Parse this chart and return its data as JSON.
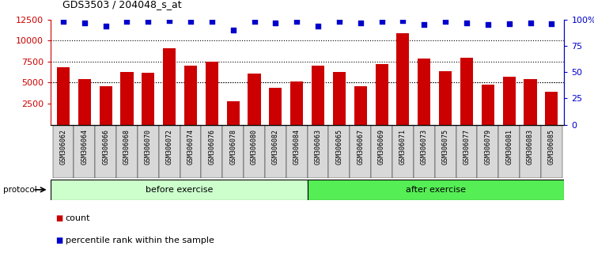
{
  "title": "GDS3503 / 204048_s_at",
  "categories": [
    "GSM306062",
    "GSM306064",
    "GSM306066",
    "GSM306068",
    "GSM306070",
    "GSM306072",
    "GSM306074",
    "GSM306076",
    "GSM306078",
    "GSM306080",
    "GSM306082",
    "GSM306084",
    "GSM306063",
    "GSM306065",
    "GSM306067",
    "GSM306069",
    "GSM306071",
    "GSM306073",
    "GSM306075",
    "GSM306077",
    "GSM306079",
    "GSM306081",
    "GSM306083",
    "GSM306085"
  ],
  "bar_values": [
    6850,
    5400,
    4550,
    6300,
    6200,
    9100,
    7050,
    7450,
    2750,
    6050,
    4400,
    5100,
    7050,
    6250,
    4550,
    7200,
    10900,
    7900,
    6400,
    7950,
    4750,
    5700,
    5400,
    3900
  ],
  "dot_values_pct": [
    98,
    97,
    94,
    98,
    98,
    99,
    98,
    98,
    90,
    98,
    97,
    98,
    94,
    98,
    97,
    98,
    99,
    95,
    98,
    97,
    95,
    96,
    97,
    96
  ],
  "bar_color": "#cc0000",
  "dot_color": "#0000cc",
  "ylim_left": [
    0,
    12500
  ],
  "ylim_right": [
    0,
    100
  ],
  "yticks_left": [
    2500,
    5000,
    7500,
    10000,
    12500
  ],
  "yticks_right": [
    0,
    25,
    50,
    75,
    100
  ],
  "grid_lines": [
    5000,
    7500,
    10000
  ],
  "before_exercise_count": 12,
  "after_exercise_count": 12,
  "protocol_label": "protocol",
  "before_label": "before exercise",
  "after_label": "after exercise",
  "legend_count_label": "count",
  "legend_percentile_label": "percentile rank within the sample",
  "before_color": "#ccffcc",
  "after_color": "#55ee55",
  "xticklabel_bg": "#d8d8d8",
  "plot_bg": "#ffffff"
}
